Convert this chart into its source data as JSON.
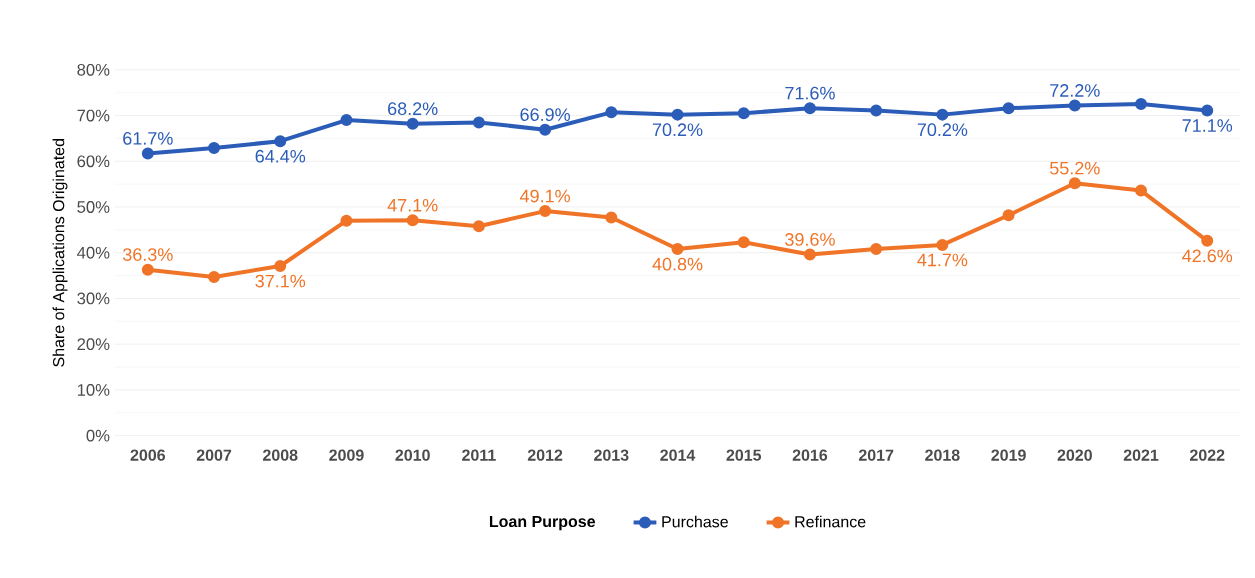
{
  "chart_data": {
    "type": "line",
    "ylabel": "Share of Applications Originated",
    "legend_title": "Loan Purpose",
    "categories": [
      "2006",
      "2007",
      "2008",
      "2009",
      "2010",
      "2011",
      "2012",
      "2013",
      "2014",
      "2015",
      "2016",
      "2017",
      "2018",
      "2019",
      "2020",
      "2021",
      "2022"
    ],
    "series": [
      {
        "name": "Purchase",
        "color": "#2b5cb8",
        "values": [
          61.7,
          62.9,
          64.4,
          69.0,
          68.2,
          68.5,
          66.9,
          70.7,
          70.2,
          70.5,
          71.6,
          71.1,
          70.2,
          71.6,
          72.2,
          72.5,
          71.1
        ],
        "value_labels": [
          "61.7%",
          null,
          "64.4%",
          null,
          "68.2%",
          null,
          "66.9%",
          null,
          "70.2%",
          null,
          "71.6%",
          null,
          "70.2%",
          null,
          "72.2%",
          null,
          "71.1%"
        ]
      },
      {
        "name": "Refinance",
        "color": "#f07427",
        "values": [
          36.3,
          34.7,
          37.1,
          47.0,
          47.1,
          45.8,
          49.1,
          47.7,
          40.8,
          42.3,
          39.6,
          40.8,
          41.7,
          48.2,
          55.2,
          53.6,
          42.6
        ],
        "value_labels": [
          "36.3%",
          null,
          "37.1%",
          null,
          "47.1%",
          null,
          "49.1%",
          null,
          "40.8%",
          null,
          "39.6%",
          null,
          "41.7%",
          null,
          "55.2%",
          null,
          "42.6%"
        ]
      }
    ],
    "ylim": [
      0,
      80
    ],
    "yticks": [
      {
        "value": 0,
        "label": "0%"
      },
      {
        "value": 10,
        "label": "10%"
      },
      {
        "value": 20,
        "label": "20%"
      },
      {
        "value": 30,
        "label": "30%"
      },
      {
        "value": 40,
        "label": "40%"
      },
      {
        "value": 50,
        "label": "50%"
      },
      {
        "value": 60,
        "label": "60%"
      },
      {
        "value": 70,
        "label": "70%"
      },
      {
        "value": 80,
        "label": "80%"
      }
    ],
    "grid": "y",
    "legend": "bottom",
    "marker": "circle",
    "line_style": "solid"
  }
}
